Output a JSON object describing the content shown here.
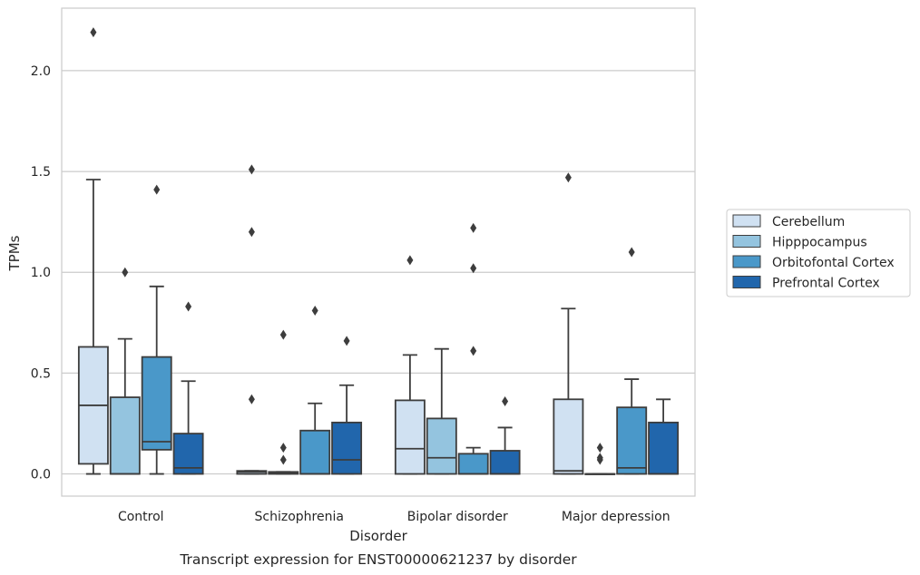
{
  "chart_data": {
    "type": "boxplot",
    "title": "",
    "caption": "Transcript expression for ENST00000621237 by disorder",
    "xlabel": "Disorder",
    "ylabel": "TPMs",
    "ylim": [
      -0.11,
      2.31
    ],
    "yticks": [
      0.0,
      0.5,
      1.0,
      1.5,
      2.0
    ],
    "ytick_labels": [
      "0.0",
      "0.5",
      "1.0",
      "1.5",
      "2.0"
    ],
    "grid": "horizontal",
    "legend_position": "right",
    "categories": [
      "Control",
      "Schizophrenia",
      "Bipolar disorder",
      "Major depression"
    ],
    "series": [
      {
        "name": "Cerebellum",
        "color": "#d0e1f2",
        "boxes": [
          {
            "min": 0.0,
            "q1": 0.05,
            "median": 0.34,
            "q3": 0.63,
            "max": 1.46,
            "outliers": [
              2.19
            ]
          },
          {
            "min": 0.0,
            "q1": 0.0,
            "median": 0.01,
            "q3": 0.015,
            "max": 0.015,
            "outliers": [
              0.37,
              1.2,
              1.51
            ]
          },
          {
            "min": 0.0,
            "q1": 0.0,
            "median": 0.125,
            "q3": 0.365,
            "max": 0.59,
            "outliers": [
              1.06
            ]
          },
          {
            "min": 0.0,
            "q1": 0.0,
            "median": 0.015,
            "q3": 0.37,
            "max": 0.82,
            "outliers": [
              1.47
            ]
          }
        ]
      },
      {
        "name": "Hipppocampus",
        "color": "#94c4df",
        "boxes": [
          {
            "min": 0.0,
            "q1": 0.0,
            "median": 0.0,
            "q3": 0.38,
            "max": 0.67,
            "outliers": [
              1.0
            ]
          },
          {
            "min": 0.0,
            "q1": 0.0,
            "median": 0.005,
            "q3": 0.01,
            "max": 0.01,
            "outliers": [
              0.07,
              0.13,
              0.69
            ]
          },
          {
            "min": 0.0,
            "q1": 0.0,
            "median": 0.08,
            "q3": 0.275,
            "max": 0.62,
            "outliers": []
          },
          {
            "min": 0.0,
            "q1": 0.0,
            "median": 0.0,
            "q3": 0.0,
            "max": 0.0,
            "outliers": [
              0.07,
              0.08,
              0.13
            ]
          }
        ]
      },
      {
        "name": "Orbitofontal Cortex",
        "color": "#4a98c9",
        "boxes": [
          {
            "min": 0.0,
            "q1": 0.12,
            "median": 0.16,
            "q3": 0.58,
            "max": 0.93,
            "outliers": [
              1.41
            ]
          },
          {
            "min": 0.0,
            "q1": 0.0,
            "median": 0.0,
            "q3": 0.215,
            "max": 0.35,
            "outliers": [
              0.81
            ]
          },
          {
            "min": 0.0,
            "q1": 0.0,
            "median": 0.0,
            "q3": 0.1,
            "max": 0.13,
            "outliers": [
              0.61,
              1.02,
              1.22
            ]
          },
          {
            "min": 0.0,
            "q1": 0.0,
            "median": 0.03,
            "q3": 0.33,
            "max": 0.47,
            "outliers": [
              1.1
            ]
          }
        ]
      },
      {
        "name": "Prefrontal Cortex",
        "color": "#2166ac",
        "boxes": [
          {
            "min": 0.0,
            "q1": 0.0,
            "median": 0.03,
            "q3": 0.2,
            "max": 0.46,
            "outliers": [
              0.83
            ]
          },
          {
            "min": 0.0,
            "q1": 0.0,
            "median": 0.07,
            "q3": 0.255,
            "max": 0.44,
            "outliers": [
              0.66
            ]
          },
          {
            "min": 0.0,
            "q1": 0.0,
            "median": 0.0,
            "q3": 0.115,
            "max": 0.23,
            "outliers": [
              0.36
            ]
          },
          {
            "min": 0.0,
            "q1": 0.0,
            "median": 0.0,
            "q3": 0.255,
            "max": 0.37,
            "outliers": []
          }
        ]
      }
    ]
  }
}
